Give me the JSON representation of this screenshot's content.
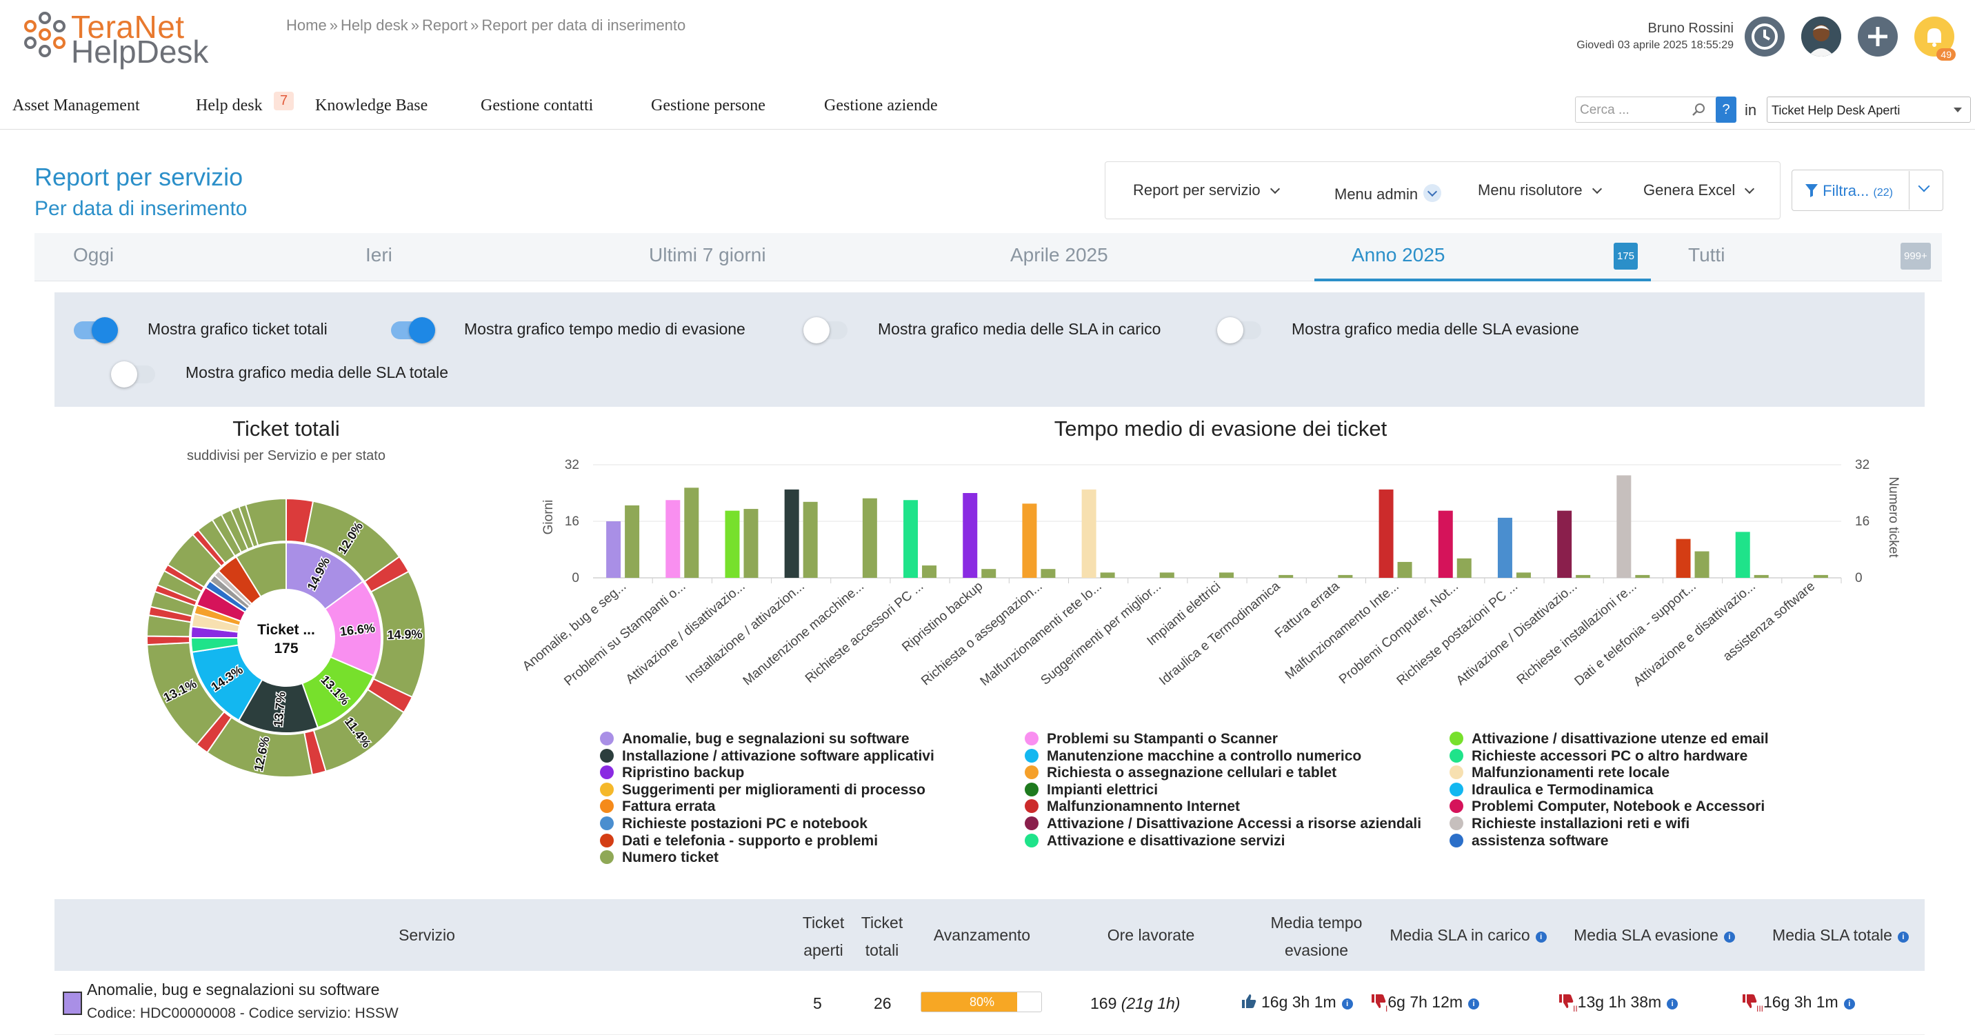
{
  "header": {
    "logo_line1": "TeraNet",
    "logo_line2": "HelpDesk",
    "breadcrumb": [
      "Home",
      "Help desk",
      "Report",
      "Report per data di inserimento"
    ],
    "user_name": "Bruno Rossini",
    "user_date": "Giovedì 03 aprile 2025 18:55:29",
    "notifications": "49"
  },
  "menu": {
    "items": [
      "Asset Management",
      "Help desk",
      "Knowledge Base",
      "Gestione contatti",
      "Gestione persone",
      "Gestione aziende"
    ],
    "helpdesk_badge": "7",
    "search_placeholder": "Cerca ...",
    "help_label": "?",
    "in_label": "in",
    "queue_value": "Ticket Help Desk Aperti"
  },
  "page": {
    "title": "Report per servizio",
    "subtitle": "Per data di inserimento",
    "actions": [
      "Report per servizio",
      "Menu admin",
      "Menu risolutore",
      "Genera Excel"
    ],
    "filter_label": "Filtra...",
    "filter_count": "(22)"
  },
  "tabs": {
    "items": [
      "Oggi",
      "Ieri",
      "Ultimi 7 giorni",
      "Aprile 2025",
      "Anno 2025",
      "Tutti"
    ],
    "active_badge": "175",
    "all_badge": "999+"
  },
  "options": [
    {
      "label": "Mostra grafico ticket totali",
      "on": true
    },
    {
      "label": "Mostra grafico tempo medio di evasione",
      "on": true
    },
    {
      "label": "Mostra grafico media delle SLA in carico",
      "on": false
    },
    {
      "label": "Mostra grafico media delle SLA evasione",
      "on": false
    },
    {
      "label": "Mostra grafico media delle SLA totale",
      "on": false
    }
  ],
  "pie": {
    "title": "Ticket totali",
    "subtitle": "suddivisi per Servizio e per stato",
    "center_label": "Ticket ...",
    "center_value": "175"
  },
  "chart_data": [
    {
      "type": "pie",
      "title": "Ticket totali",
      "subtitle": "suddivisi per Servizio e per stato",
      "inner": [
        {
          "value": 14.9,
          "label": "14.9%",
          "color": "#a98fe6"
        },
        {
          "value": 16.6,
          "label": "16.6%",
          "color": "#f98ff0"
        },
        {
          "value": 13.1,
          "label": "13.1%",
          "color": "#77e02c"
        },
        {
          "value": 13.7,
          "label": "13.7%",
          "color": "#2c3e3d"
        },
        {
          "value": 14.3,
          "label": "14.3%",
          "color": "#13b7f0"
        },
        {
          "value": 2.4,
          "label": "",
          "color": "#1fe38a"
        },
        {
          "value": 1.9,
          "label": "",
          "color": "#8a2be2"
        },
        {
          "value": 2.2,
          "label": "",
          "color": "#f7e0b0"
        },
        {
          "value": 1.5,
          "label": "",
          "color": "#f5a02a"
        },
        {
          "value": 3.3,
          "label": "",
          "color": "#d5135a"
        },
        {
          "value": 1.3,
          "label": "",
          "color": "#2b6fc9"
        },
        {
          "value": 1.2,
          "label": "",
          "color": "#999999"
        },
        {
          "value": 1.0,
          "label": "",
          "color": "#c6bfbd"
        },
        {
          "value": 3.8,
          "label": "",
          "color": "#d43d14"
        },
        {
          "value": 8.8,
          "label": "",
          "color": "#8fa856"
        }
      ],
      "outer": [
        {
          "value": 3.1,
          "label": "",
          "color": "#db3b3b"
        },
        {
          "value": 12.0,
          "label": "12.0%",
          "color": "#8fa856"
        },
        {
          "value": 2.0,
          "label": "",
          "color": "#db3b3b"
        },
        {
          "value": 14.9,
          "label": "14.9%",
          "color": "#8fa856"
        },
        {
          "value": 2.0,
          "label": "",
          "color": "#db3b3b"
        },
        {
          "value": 11.4,
          "label": "11.4%",
          "color": "#8fa856"
        },
        {
          "value": 1.6,
          "label": "",
          "color": "#db3b3b"
        },
        {
          "value": 12.6,
          "label": "12.6%",
          "color": "#8fa856"
        },
        {
          "value": 1.5,
          "label": "",
          "color": "#db3b3b"
        },
        {
          "value": 13.1,
          "label": "13.1%",
          "color": "#8fa856"
        },
        {
          "value": 1.0,
          "label": "",
          "color": "#db3b3b"
        },
        {
          "value": 2.4,
          "label": "",
          "color": "#8fa856"
        },
        {
          "value": 1.0,
          "label": "",
          "color": "#db3b3b"
        },
        {
          "value": 1.8,
          "label": "",
          "color": "#8fa856"
        },
        {
          "value": 0.8,
          "label": "",
          "color": "#db3b3b"
        },
        {
          "value": 1.8,
          "label": "",
          "color": "#8fa856"
        },
        {
          "value": 0.8,
          "label": "",
          "color": "#db3b3b"
        },
        {
          "value": 4.5,
          "label": "",
          "color": "#8fa856"
        },
        {
          "value": 0.8,
          "label": "",
          "color": "#db3b3b"
        },
        {
          "value": 2.0,
          "label": "",
          "color": "#8fa856"
        },
        {
          "value": 1.2,
          "label": "",
          "color": "#8fa856"
        },
        {
          "value": 1.2,
          "label": "",
          "color": "#8fa856"
        },
        {
          "value": 1.0,
          "label": "",
          "color": "#8fa856"
        },
        {
          "value": 0.8,
          "label": "",
          "color": "#8fa856"
        },
        {
          "value": 4.7,
          "label": "",
          "color": "#8fa856"
        }
      ]
    },
    {
      "type": "bar",
      "title": "Tempo medio di evasione dei ticket",
      "ylabel": "Giorni",
      "y2label": "Numero ticket",
      "ylim": [
        0,
        32
      ],
      "yticks": [
        0,
        16,
        32
      ],
      "categories": [
        "Anomalie, bug e seg...",
        "Problemi su Stampanti o...",
        "Attivazione / disattivazio...",
        "Installazione / attivazion...",
        "Manutenzione macchine...",
        "Richieste accessori PC ...",
        "Ripristino backup",
        "Richiesta o assegnazion...",
        "Malfunzionamenti rete lo...",
        "Suggerimenti per miglior...",
        "Impianti elettrici",
        "Idraulica e Termodinamica",
        "Fattura errata",
        "Malfunzionamento Inte...",
        "Problemi Computer, Not...",
        "Richieste postazioni PC ...",
        "Attivazione / Disattivazio...",
        "Richieste installazioni re...",
        "Dati e telefonia - support...",
        "Attivazione e disattivazio...",
        "assistenza software"
      ],
      "series": [
        {
          "name": "Giorni",
          "colors": [
            "#a98fe6",
            "#f98ff0",
            "#77e02c",
            "#2c3e3d",
            "#13b7f0",
            "#1fe38a",
            "#8a2be2",
            "#f5a02a",
            "#f7e0b0",
            "#f5a02a",
            "#1e7a1e",
            "#13b7f0",
            "#f5a02a",
            "#cc2b2b",
            "#d5135a",
            "#4a8ecf",
            "#8a1f4c",
            "#c6bfbd",
            "#d43d14",
            "#1fe38a",
            "#2b6fc9"
          ],
          "values": [
            16,
            22,
            19,
            25,
            0,
            22,
            24,
            21,
            25,
            0,
            0,
            0,
            0,
            25,
            19,
            17,
            19,
            29,
            11,
            13,
            0
          ]
        },
        {
          "name": "Numero ticket",
          "color": "#8fa856",
          "values": [
            20.5,
            25.5,
            19.5,
            21.5,
            22.5,
            3.5,
            2.5,
            2.5,
            1.5,
            1.5,
            1.5,
            0.8,
            0.8,
            4.5,
            5.5,
            1.5,
            0.8,
            0.8,
            7.5,
            0.8,
            0.8
          ]
        }
      ]
    }
  ],
  "bar": {
    "title": "Tempo medio di evasione dei ticket"
  },
  "legend": [
    {
      "label": "Anomalie, bug e segnalazioni su software",
      "color": "#a98fe6"
    },
    {
      "label": "Problemi su Stampanti o Scanner",
      "color": "#f98ff0"
    },
    {
      "label": "Attivazione / disattivazione utenze ed email",
      "color": "#77e02c"
    },
    {
      "label": "Installazione / attivazione software applicativi",
      "color": "#2c3e3d"
    },
    {
      "label": "Manutenzione macchine a controllo numerico",
      "color": "#13b7f0"
    },
    {
      "label": "Richieste accessori PC o altro hardware",
      "color": "#1fe38a"
    },
    {
      "label": "Ripristino backup",
      "color": "#8a2be2"
    },
    {
      "label": "Richiesta o assegnazione cellulari e tablet",
      "color": "#f5a02a"
    },
    {
      "label": "Malfunzionamenti rete locale",
      "color": "#f7e0b0"
    },
    {
      "label": "Suggerimenti per miglioramenti di processo",
      "color": "#f5b82a"
    },
    {
      "label": "Impianti elettrici",
      "color": "#1e7a1e"
    },
    {
      "label": "Idraulica e Termodinamica",
      "color": "#13b7f0"
    },
    {
      "label": "Fattura errata",
      "color": "#f58a1a"
    },
    {
      "label": "Malfunzionamnento Internet",
      "color": "#cc2b2b"
    },
    {
      "label": "Problemi Computer, Notebook e Accessori",
      "color": "#d5135a"
    },
    {
      "label": "Richieste postazioni PC e notebook",
      "color": "#4a8ecf"
    },
    {
      "label": "Attivazione / Disattivazione Accessi a risorse aziendali",
      "color": "#8a1f4c"
    },
    {
      "label": "Richieste installazioni reti e wifi",
      "color": "#c6bfbd"
    },
    {
      "label": "Dati e telefonia - supporto e problemi",
      "color": "#d43d14"
    },
    {
      "label": "Attivazione e disattivazione servizi",
      "color": "#1fe38a"
    },
    {
      "label": "assistenza software",
      "color": "#2b6fc9"
    },
    {
      "label": "Numero ticket",
      "color": "#8fa856"
    }
  ],
  "table": {
    "headers": {
      "servizio": "Servizio",
      "aperti_1": "Ticket",
      "aperti_2": "aperti",
      "totali_1": "Ticket",
      "totali_2": "totali",
      "avanzamento": "Avanzamento",
      "ore": "Ore lavorate",
      "media_1": "Media tempo",
      "media_2": "evasione",
      "sla_carico": "Media SLA in carico",
      "sla_evasione": "Media SLA evasione",
      "sla_totale": "Media SLA totale"
    },
    "row": {
      "name": "Anomalie, bug e segnalazioni su software",
      "code": "Codice: HDC00000008 - Codice servizio: HSSW",
      "color": "#a98fe6",
      "aperti": "5",
      "totali": "26",
      "progress": 80,
      "progress_label": "80%",
      "ore": "169",
      "ore_detail": "(21g 1h)",
      "media": "16g 3h 1m",
      "sla_carico": "6g 7h 12m",
      "sla_evasione": "13g 1h 38m",
      "sla_totale": "16g 3h 1m",
      "sla_carico_mark": "I",
      "sla_evasione_mark": "II",
      "sla_totale_mark": "III"
    }
  }
}
